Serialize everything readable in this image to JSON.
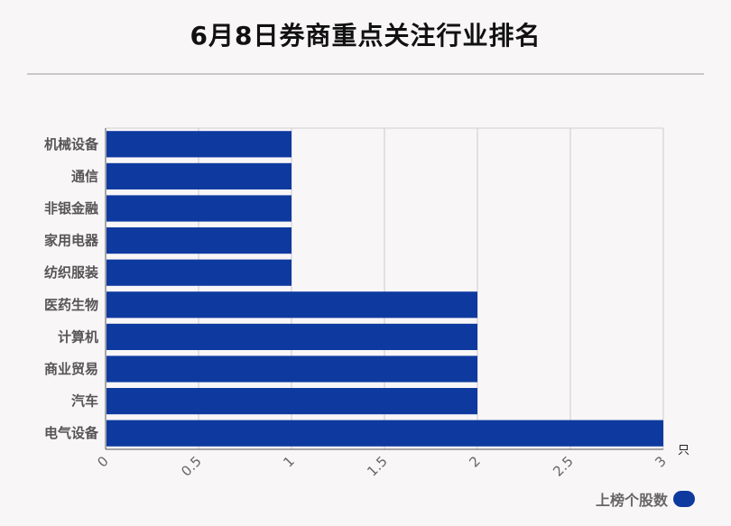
{
  "chart_data": {
    "type": "bar",
    "orientation": "horizontal",
    "title": "6月8日券商重点关注行业排名",
    "categories": [
      "机械设备",
      "通信",
      "非银金融",
      "家用电器",
      "纺织服装",
      "医药生物",
      "计算机",
      "商业贸易",
      "汽车",
      "电气设备"
    ],
    "series": [
      {
        "name": "上榜个股数",
        "values": [
          1,
          1,
          1,
          1,
          1,
          2,
          2,
          2,
          2,
          3
        ]
      }
    ],
    "xlim": [
      0,
      3
    ],
    "x_ticks": [
      "0",
      "0.5",
      "1",
      "1.5",
      "2",
      "2.5",
      "3"
    ],
    "x_unit": "只",
    "grid": true,
    "legend_position": "bottom-right",
    "bar_color": "#0e3aa0"
  }
}
